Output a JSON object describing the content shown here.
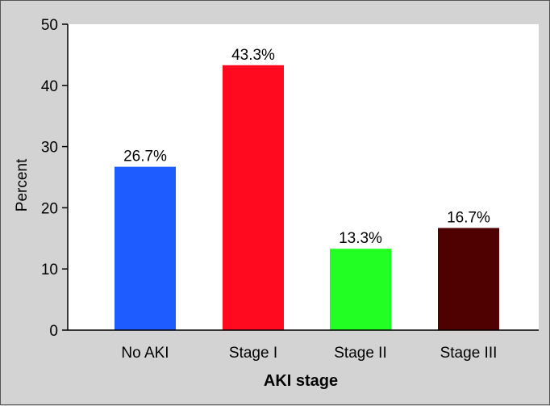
{
  "chart_data": {
    "type": "bar",
    "categories": [
      "No AKI",
      "Stage I",
      "Stage II",
      "Stage III"
    ],
    "values": [
      26.7,
      43.3,
      13.3,
      16.7
    ],
    "data_labels": [
      "26.7%",
      "43.3%",
      "13.3%",
      "16.7%"
    ],
    "colors": [
      "#1f5cff",
      "#ff0a1f",
      "#22ff22",
      "#4f0000"
    ],
    "xlabel": "AKI stage",
    "ylabel": "Percent",
    "ylim": [
      0,
      50
    ],
    "yticks": [
      0,
      10,
      20,
      30,
      40,
      50
    ],
    "grid": false,
    "legend": "none",
    "plot_background": "#ffffff",
    "outer_background": "#d3d3d3"
  }
}
